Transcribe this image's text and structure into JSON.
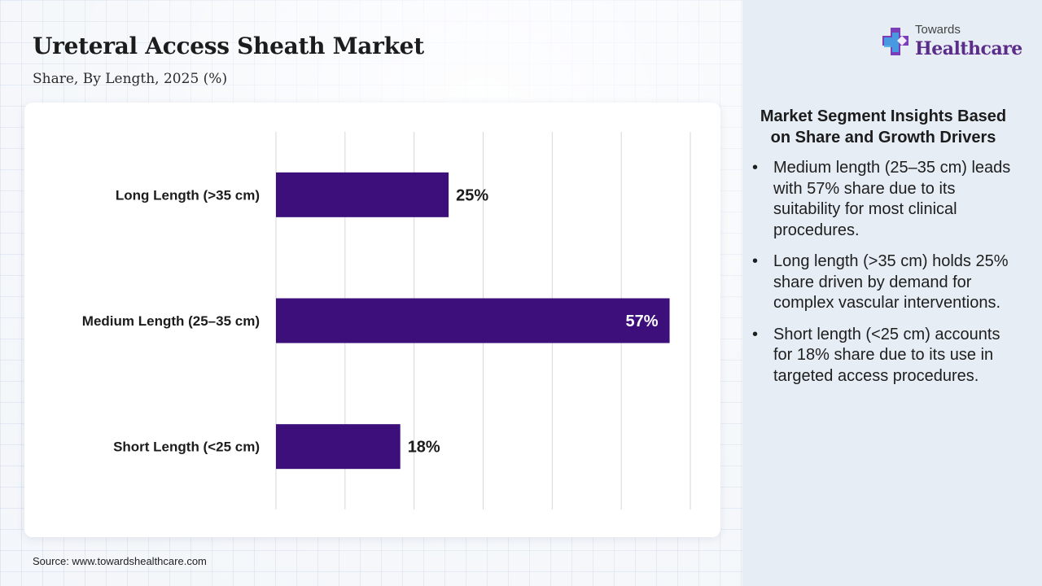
{
  "header": {
    "title": "Ureteral Access Sheath Market",
    "subtitle": "Share, By Length, 2025 (%)"
  },
  "logo": {
    "top_text": "Towards",
    "bottom_text": "Healthcare",
    "icon": "cross-plus-icon"
  },
  "colors": {
    "bar": "#3d0f7a",
    "accent": "#5b2c8a",
    "gridline": "#d7d7d7",
    "side_panel": "#e6edf5"
  },
  "chart_data": {
    "type": "bar",
    "orientation": "horizontal",
    "title": "Ureteral Access Sheath Market",
    "subtitle": "Share, By Length, 2025 (%)",
    "categories": [
      "Long Length (>35 cm)",
      "Medium Length (25–35 cm)",
      "Short Length (<25 cm)"
    ],
    "values": [
      25,
      57,
      18
    ],
    "data_labels": [
      "25%",
      "57%",
      "18%"
    ],
    "xlim": [
      0,
      60
    ],
    "grid": true,
    "legend": "none"
  },
  "insights": {
    "heading": "Market Segment Insights Based on Share and Growth Drivers",
    "items": [
      "Medium length (25–35 cm) leads with 57% share due to its suitability for most clinical procedures.",
      "Long length (>35 cm) holds 25% share driven by demand for complex vascular interventions.",
      "Short length (<25 cm) accounts for 18% share due to its use in targeted access procedures."
    ]
  },
  "footer": {
    "source": "Source: www.towardshealthcare.com"
  }
}
